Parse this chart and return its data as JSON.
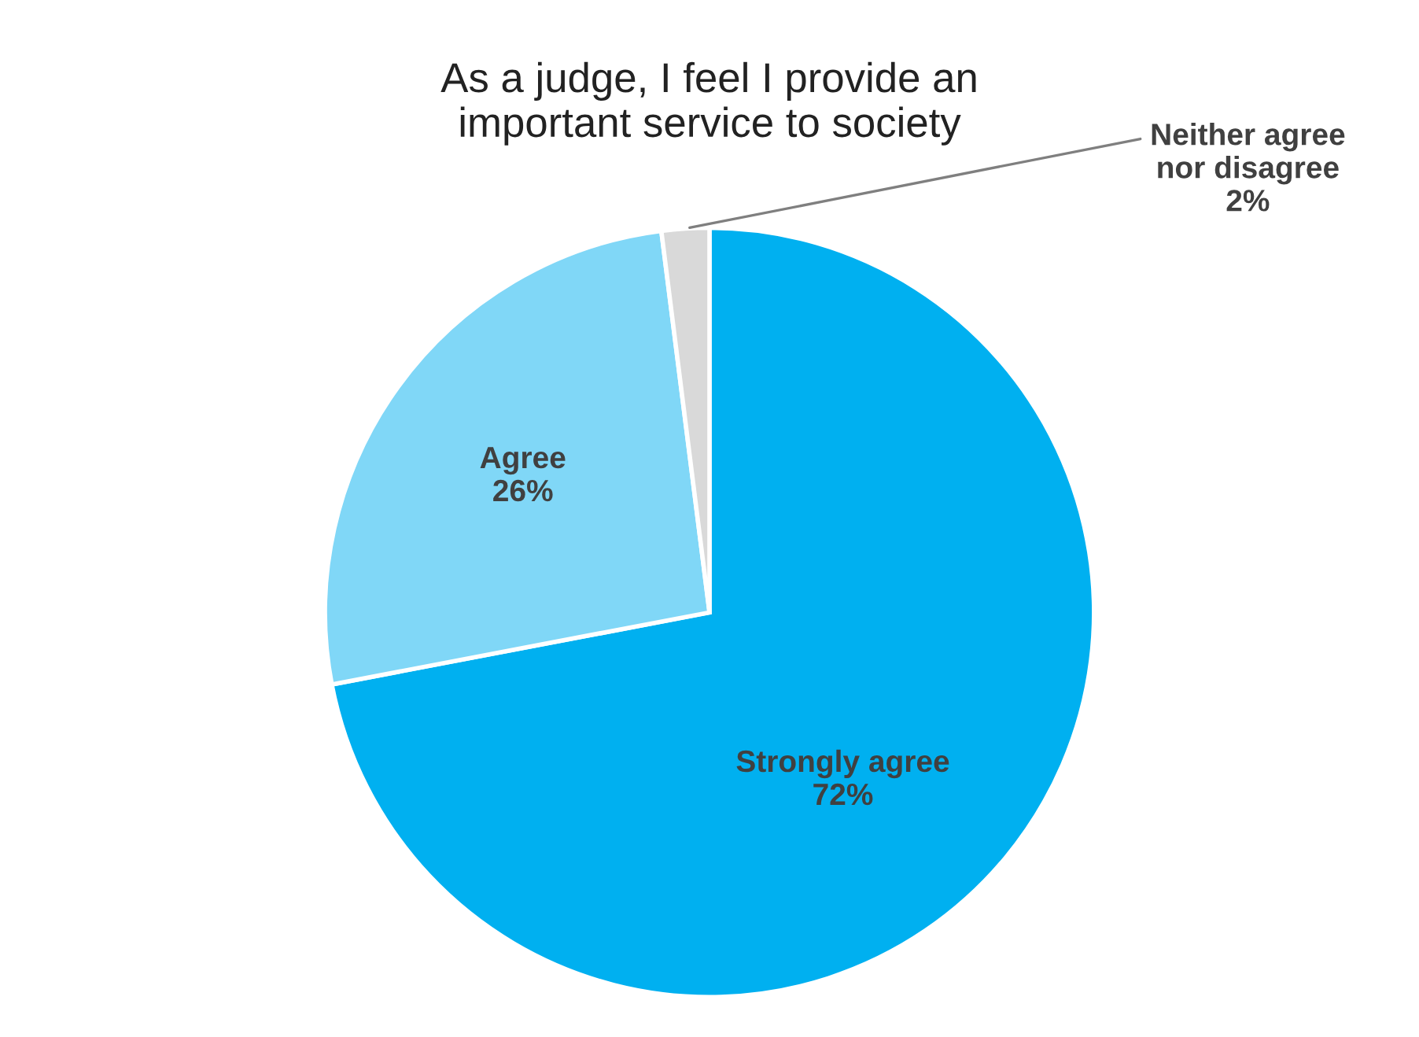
{
  "chart_data": {
    "type": "pie",
    "title": "As a judge, I feel I provide an\nimportant service to society",
    "categories": [
      "Strongly agree",
      "Agree",
      "Neither agree\nnor disagree"
    ],
    "values": [
      72,
      26,
      2
    ],
    "value_labels": [
      "72%",
      "26%",
      "2%"
    ],
    "colors": [
      "#00b0f0",
      "#80d7f7",
      "#d9d9d9"
    ],
    "legend": false
  }
}
